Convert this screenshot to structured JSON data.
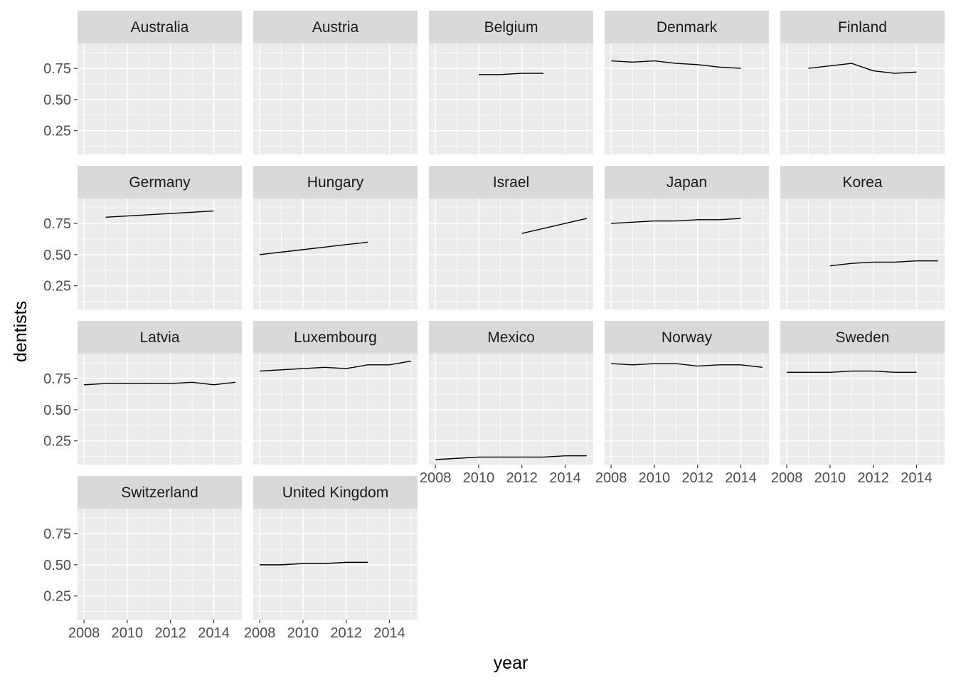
{
  "chart_data": {
    "type": "line",
    "layout": "facet_wrap",
    "ncol": 5,
    "xlabel": "year",
    "ylabel": "dentists",
    "xlim": [
      2007.7,
      2015.3
    ],
    "ylim": [
      0.06,
      0.95
    ],
    "x_ticks": [
      2008,
      2010,
      2012,
      2014
    ],
    "y_ticks": [
      0.25,
      0.5,
      0.75
    ],
    "y_tick_labels": [
      "0.25",
      "0.50",
      "0.75"
    ],
    "grid": true,
    "panel_background": "#ebebeb",
    "strip_background": "#d9d9d9",
    "line_color": "#000000",
    "facets": [
      {
        "name": "Australia",
        "x": [],
        "y": []
      },
      {
        "name": "Austria",
        "x": [],
        "y": []
      },
      {
        "name": "Belgium",
        "x": [
          2010,
          2011,
          2012,
          2013
        ],
        "y": [
          0.7,
          0.7,
          0.71,
          0.71
        ]
      },
      {
        "name": "Denmark",
        "x": [
          2008,
          2009,
          2010,
          2011,
          2012,
          2013,
          2014
        ],
        "y": [
          0.81,
          0.8,
          0.81,
          0.79,
          0.78,
          0.76,
          0.75
        ]
      },
      {
        "name": "Finland",
        "x": [
          2009,
          2010,
          2011,
          2012,
          2013,
          2014
        ],
        "y": [
          0.75,
          0.77,
          0.79,
          0.73,
          0.71,
          0.72
        ]
      },
      {
        "name": "Germany",
        "x": [
          2009,
          2010,
          2011,
          2012,
          2013,
          2014
        ],
        "y": [
          0.8,
          0.81,
          0.82,
          0.83,
          0.84,
          0.85
        ]
      },
      {
        "name": "Hungary",
        "x": [
          2008,
          2009,
          2010,
          2011,
          2012,
          2013
        ],
        "y": [
          0.5,
          0.52,
          0.54,
          0.56,
          0.58,
          0.6
        ]
      },
      {
        "name": "Israel",
        "x": [
          2012,
          2013,
          2014,
          2015
        ],
        "y": [
          0.67,
          0.71,
          0.75,
          0.79
        ]
      },
      {
        "name": "Japan",
        "x": [
          2008,
          2009,
          2010,
          2011,
          2012,
          2013,
          2014
        ],
        "y": [
          0.75,
          0.76,
          0.77,
          0.77,
          0.78,
          0.78,
          0.79
        ]
      },
      {
        "name": "Korea",
        "x": [
          2010,
          2011,
          2012,
          2013,
          2014,
          2015
        ],
        "y": [
          0.41,
          0.43,
          0.44,
          0.44,
          0.45,
          0.45
        ]
      },
      {
        "name": "Latvia",
        "x": [
          2008,
          2009,
          2010,
          2011,
          2012,
          2013,
          2014,
          2015
        ],
        "y": [
          0.7,
          0.71,
          0.71,
          0.71,
          0.71,
          0.72,
          0.7,
          0.72
        ]
      },
      {
        "name": "Luxembourg",
        "x": [
          2008,
          2009,
          2010,
          2011,
          2012,
          2013,
          2014,
          2015
        ],
        "y": [
          0.81,
          0.82,
          0.83,
          0.84,
          0.83,
          0.86,
          0.86,
          0.89
        ]
      },
      {
        "name": "Mexico",
        "x": [
          2008,
          2009,
          2010,
          2011,
          2012,
          2013,
          2014,
          2015
        ],
        "y": [
          0.1,
          0.11,
          0.12,
          0.12,
          0.12,
          0.12,
          0.13,
          0.13
        ]
      },
      {
        "name": "Norway",
        "x": [
          2008,
          2009,
          2010,
          2011,
          2012,
          2013,
          2014,
          2015
        ],
        "y": [
          0.87,
          0.86,
          0.87,
          0.87,
          0.85,
          0.86,
          0.86,
          0.84
        ]
      },
      {
        "name": "Sweden",
        "x": [
          2008,
          2009,
          2010,
          2011,
          2012,
          2013,
          2014
        ],
        "y": [
          0.8,
          0.8,
          0.8,
          0.81,
          0.81,
          0.8,
          0.8
        ]
      },
      {
        "name": "Switzerland",
        "x": [],
        "y": []
      },
      {
        "name": "United Kingdom",
        "x": [
          2008,
          2009,
          2010,
          2011,
          2012,
          2013
        ],
        "y": [
          0.5,
          0.5,
          0.51,
          0.51,
          0.52,
          0.52
        ]
      }
    ]
  }
}
